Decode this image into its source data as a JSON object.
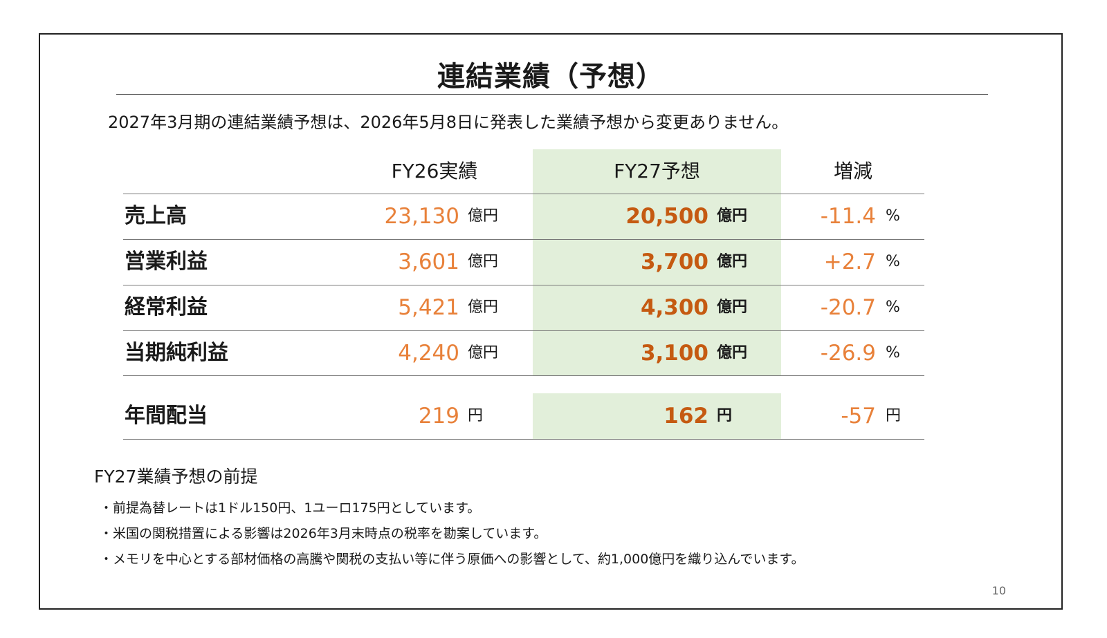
{
  "slide": {
    "title": "連結業績（予想）",
    "lead": "2027年3月期の連結業績予想は、2026年5月8日に発表した業績予想から変更ありません。",
    "page_number": "10"
  },
  "table": {
    "headers": [
      "FY26実績",
      "FY27予想",
      "増減"
    ],
    "rows": [
      {
        "label": "売上高",
        "fy26": "23,130",
        "fy26_unit": "億円",
        "fy27": "20,500",
        "fy27_unit": "億円",
        "diff": "-11.4",
        "diff_unit": "%"
      },
      {
        "label": "営業利益",
        "fy26": "3,601",
        "fy26_unit": "億円",
        "fy27": "3,700",
        "fy27_unit": "億円",
        "diff": "+2.7",
        "diff_unit": "%"
      },
      {
        "label": "経常利益",
        "fy26": "5,421",
        "fy26_unit": "億円",
        "fy27": "4,300",
        "fy27_unit": "億円",
        "diff": "-20.7",
        "diff_unit": "%"
      },
      {
        "label": "当期純利益",
        "fy26": "4,240",
        "fy26_unit": "億円",
        "fy27": "3,100",
        "fy27_unit": "億円",
        "diff": "-26.9",
        "diff_unit": "%"
      }
    ],
    "dividend": {
      "label": "年間配当",
      "fy26": "219",
      "fy26_unit": "円",
      "fy27": "162",
      "fy27_unit": "円",
      "diff": "-57",
      "diff_unit": "円"
    }
  },
  "assumptions": {
    "title": "FY27業績予想の前提",
    "items": [
      "・前提為替レートは1ドル150円、1ユーロ175円としています。",
      "・米国の関税措置による影響は2026年3月末時点の税率を勘案しています。",
      "・メモリを中心とする部材価格の高騰や関税の支払い等に伴う原価への影響として、約1,000億円を織り込んでいます。"
    ]
  },
  "colors": {
    "value_orange": "#e8813a",
    "forecast_orange": "#c55a11",
    "highlight_green": "#e2efda"
  }
}
